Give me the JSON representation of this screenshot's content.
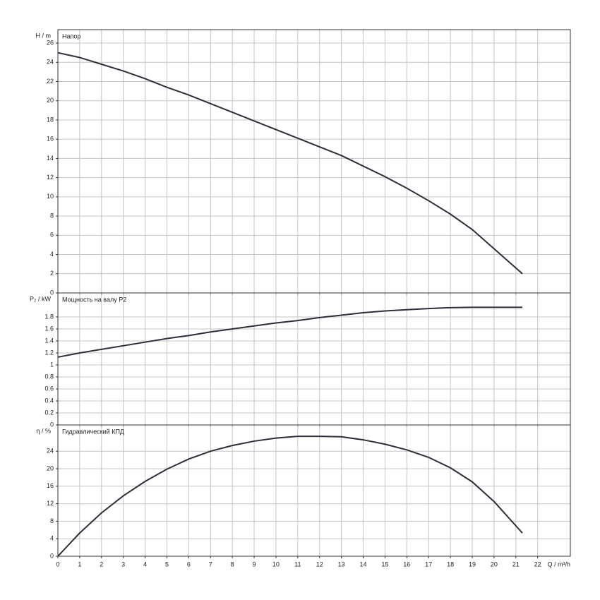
{
  "chart_data": [
    {
      "type": "line",
      "ylabel": "H / m",
      "title": "Напор",
      "x": [
        0,
        1,
        2,
        3,
        4,
        5,
        6,
        7,
        8,
        9,
        10,
        11,
        12,
        13,
        14,
        15,
        16,
        17,
        18,
        19,
        20,
        21.3
      ],
      "series": [
        {
          "name": "Напор",
          "color": "#2b2f3a",
          "values": [
            25,
            24.5,
            23.8,
            23.1,
            22.3,
            21.4,
            20.6,
            19.7,
            18.8,
            17.9,
            17,
            16.1,
            15.2,
            14.3,
            13.2,
            12.1,
            10.9,
            9.6,
            8.2,
            6.6,
            4.6,
            2
          ]
        }
      ],
      "xlim": [
        0,
        23.5
      ],
      "xticks": [
        0,
        1,
        2,
        3,
        4,
        5,
        6,
        7,
        8,
        9,
        10,
        11,
        12,
        13,
        14,
        15,
        16,
        17,
        18,
        19,
        20,
        21,
        22
      ],
      "ylim": [
        0,
        27.4
      ],
      "yticks": [
        0,
        2,
        4,
        6,
        8,
        10,
        12,
        14,
        16,
        18,
        20,
        22,
        24,
        26
      ],
      "grid": true
    },
    {
      "type": "line",
      "ylabel": "P₂ / kW",
      "title": "Мощность на валу P2",
      "x": [
        0,
        1,
        2,
        3,
        4,
        5,
        6,
        7,
        8,
        9,
        10,
        11,
        12,
        13,
        14,
        15,
        16,
        17,
        18,
        19,
        20,
        21.3
      ],
      "series": [
        {
          "name": "Мощность на валу P2",
          "color": "#2b2f3a",
          "values": [
            1.13,
            1.2,
            1.26,
            1.32,
            1.38,
            1.44,
            1.49,
            1.55,
            1.6,
            1.65,
            1.7,
            1.74,
            1.79,
            1.83,
            1.87,
            1.9,
            1.92,
            1.94,
            1.955,
            1.96,
            1.96,
            1.96
          ]
        }
      ],
      "xlim": [
        0,
        23.5
      ],
      "xticks": [
        0,
        1,
        2,
        3,
        4,
        5,
        6,
        7,
        8,
        9,
        10,
        11,
        12,
        13,
        14,
        15,
        16,
        17,
        18,
        19,
        20,
        21,
        22
      ],
      "ylim": [
        0,
        2.2
      ],
      "yticks": [
        0,
        0.2,
        0.4,
        0.6,
        0.8,
        1,
        1.2,
        1.4,
        1.6,
        1.8
      ],
      "grid": true
    },
    {
      "type": "line",
      "ylabel": "η / %",
      "title": "Гидравлический КПД",
      "xlabel": "Q / m³/h",
      "x": [
        0,
        1,
        2,
        3,
        4,
        5,
        6,
        7,
        8,
        9,
        10,
        11,
        12,
        13,
        14,
        15,
        16,
        17,
        18,
        19,
        20,
        21.3
      ],
      "series": [
        {
          "name": "Гидравлический КПД",
          "color": "#2b2f3a",
          "values": [
            0,
            5.3,
            9.9,
            13.8,
            17.1,
            19.9,
            22.2,
            24,
            25.3,
            26.3,
            27,
            27.4,
            27.4,
            27.3,
            26.6,
            25.6,
            24.3,
            22.6,
            20.2,
            17,
            12.5,
            5.3
          ]
        }
      ],
      "xlim": [
        0,
        23.5
      ],
      "xticks": [
        0,
        1,
        2,
        3,
        4,
        5,
        6,
        7,
        8,
        9,
        10,
        11,
        12,
        13,
        14,
        15,
        16,
        17,
        18,
        19,
        20,
        21,
        22
      ],
      "ylim": [
        0,
        30
      ],
      "yticks": [
        0,
        4,
        8,
        12,
        16,
        20,
        24
      ],
      "grid": true
    }
  ]
}
